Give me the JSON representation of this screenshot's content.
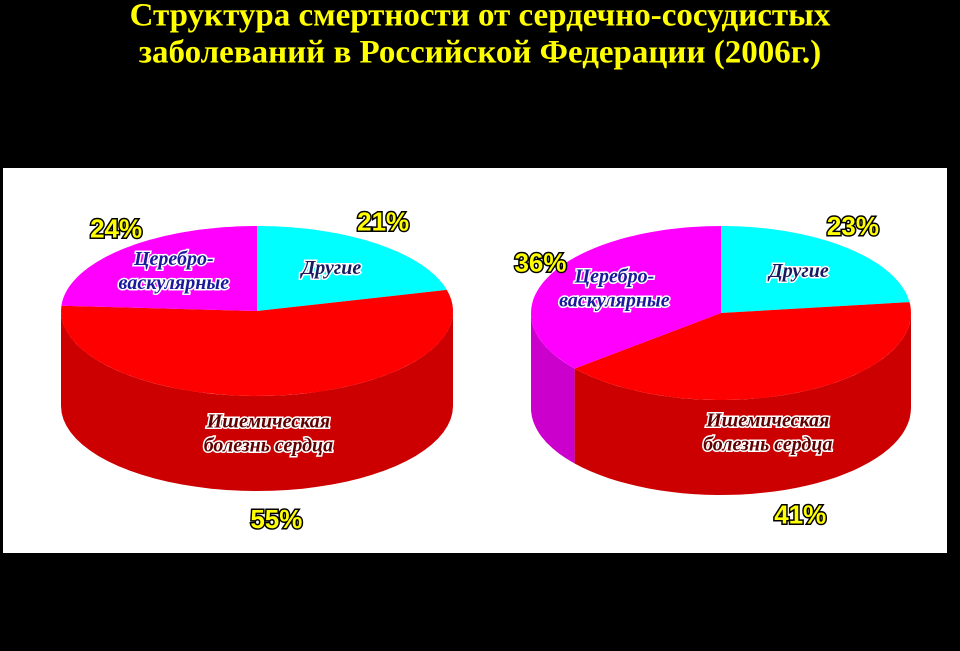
{
  "title": [
    "Структура смертности от сердечно-сосудистых",
    "заболеваний в Российской Федерации (2006г.)"
  ],
  "chart_data": [
    {
      "type": "pie3d",
      "categories": [
        [
          "Другие"
        ],
        [
          "Ишемическая",
          "болезнь сердца"
        ],
        [
          "Церебро-",
          "васкулярные"
        ]
      ],
      "values": [
        21,
        55,
        24
      ],
      "value_labels": [
        "21%",
        "55%",
        "24%"
      ],
      "colors": [
        "#00ffff",
        "#ff0000",
        "#ff00ff"
      ]
    },
    {
      "type": "pie3d",
      "categories": [
        [
          "Другие"
        ],
        [
          "Ишемическая",
          "болезнь сердца"
        ],
        [
          "Церебро-",
          "васкулярные"
        ]
      ],
      "values": [
        23,
        41,
        36
      ],
      "value_labels": [
        "23%",
        "41%",
        "36%"
      ],
      "colors": [
        "#00ffff",
        "#ff0000",
        "#ff00ff"
      ]
    }
  ]
}
